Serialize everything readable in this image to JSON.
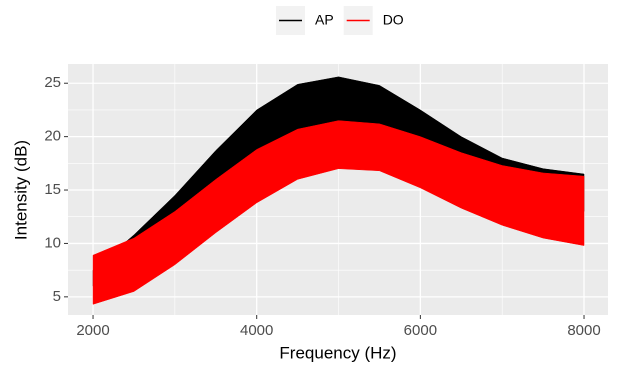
{
  "chart_data": {
    "type": "ribbon",
    "x_label": "Frequency (Hz)",
    "y_label": "Intensity (dB)",
    "x": [
      2000,
      2500,
      3000,
      3500,
      4000,
      4500,
      5000,
      5500,
      6000,
      6500,
      7000,
      7500,
      8000
    ],
    "series": [
      {
        "name": "AP",
        "color": "#000000",
        "upper": [
          7.5,
          10.8,
          14.5,
          18.7,
          22.5,
          24.9,
          25.6,
          24.8,
          22.5,
          20,
          18,
          17,
          16.5
        ],
        "lower": [
          6,
          7,
          10,
          13,
          16,
          18,
          19,
          19,
          17.5,
          16,
          14.5,
          13.5,
          13
        ]
      },
      {
        "name": "DO",
        "color": "#ff0000",
        "upper": [
          8.9,
          10.5,
          13,
          16,
          18.8,
          20.7,
          21.5,
          21.2,
          20,
          18.5,
          17.3,
          16.6,
          16.3
        ],
        "lower": [
          4.3,
          5.5,
          8,
          11,
          13.8,
          16,
          17,
          16.8,
          15.2,
          13.3,
          11.7,
          10.5,
          9.8
        ]
      }
    ],
    "xlim": [
      1694,
      8293
    ],
    "xticks": [
      2000,
      4000,
      6000,
      8000
    ],
    "xminor": [
      3000,
      5000,
      7000
    ],
    "ylim": [
      3.3,
      26.8
    ],
    "yticks": [
      5,
      10,
      15,
      20,
      25
    ],
    "yminor": [
      7.5,
      12.5,
      17.5,
      22.5
    ],
    "grid": true,
    "legend": "top"
  }
}
